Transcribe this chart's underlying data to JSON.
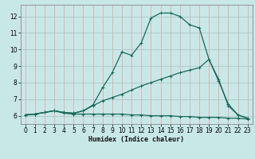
{
  "xlabel": "Humidex (Indice chaleur)",
  "bg_color": "#c8e8e8",
  "grid_color_h": "#a8c8c8",
  "grid_color_v": "#e8a8a8",
  "line_color": "#1a6858",
  "xlim": [
    -0.5,
    23.5
  ],
  "ylim": [
    5.5,
    12.7
  ],
  "xticks": [
    0,
    1,
    2,
    3,
    4,
    5,
    6,
    7,
    8,
    9,
    10,
    11,
    12,
    13,
    14,
    15,
    16,
    17,
    18,
    19,
    20,
    21,
    22,
    23
  ],
  "yticks": [
    6,
    7,
    8,
    9,
    10,
    11,
    12
  ],
  "line1_x": [
    0,
    1,
    2,
    3,
    4,
    5,
    6,
    7,
    8,
    9,
    10,
    11,
    12,
    13,
    14,
    15,
    16,
    17,
    18,
    19,
    20,
    21,
    22,
    23
  ],
  "line1_y": [
    6.05,
    6.1,
    6.2,
    6.3,
    6.15,
    6.1,
    6.1,
    6.1,
    6.1,
    6.1,
    6.1,
    6.05,
    6.05,
    6.0,
    6.0,
    6.0,
    5.95,
    5.95,
    5.9,
    5.9,
    5.9,
    5.85,
    5.85,
    5.8
  ],
  "line2_x": [
    0,
    1,
    2,
    3,
    4,
    5,
    6,
    7,
    8,
    9,
    10,
    11,
    12,
    13,
    14,
    15,
    16,
    17,
    18,
    19,
    20,
    21,
    22,
    23
  ],
  "line2_y": [
    6.05,
    6.1,
    6.2,
    6.3,
    6.2,
    6.15,
    6.3,
    6.6,
    6.9,
    7.1,
    7.3,
    7.55,
    7.8,
    8.0,
    8.2,
    8.4,
    8.6,
    8.75,
    8.9,
    9.4,
    8.2,
    6.6,
    6.05,
    5.85
  ],
  "line3_x": [
    0,
    1,
    2,
    3,
    4,
    5,
    6,
    7,
    8,
    9,
    10,
    11,
    12,
    13,
    14,
    15,
    16,
    17,
    18,
    19,
    20,
    21,
    22,
    23
  ],
  "line3_y": [
    6.05,
    6.1,
    6.2,
    6.3,
    6.2,
    6.15,
    6.3,
    6.65,
    7.7,
    8.6,
    9.85,
    9.65,
    10.4,
    11.9,
    12.2,
    12.2,
    12.0,
    11.5,
    11.3,
    9.4,
    8.1,
    6.7,
    6.05,
    5.85
  ]
}
